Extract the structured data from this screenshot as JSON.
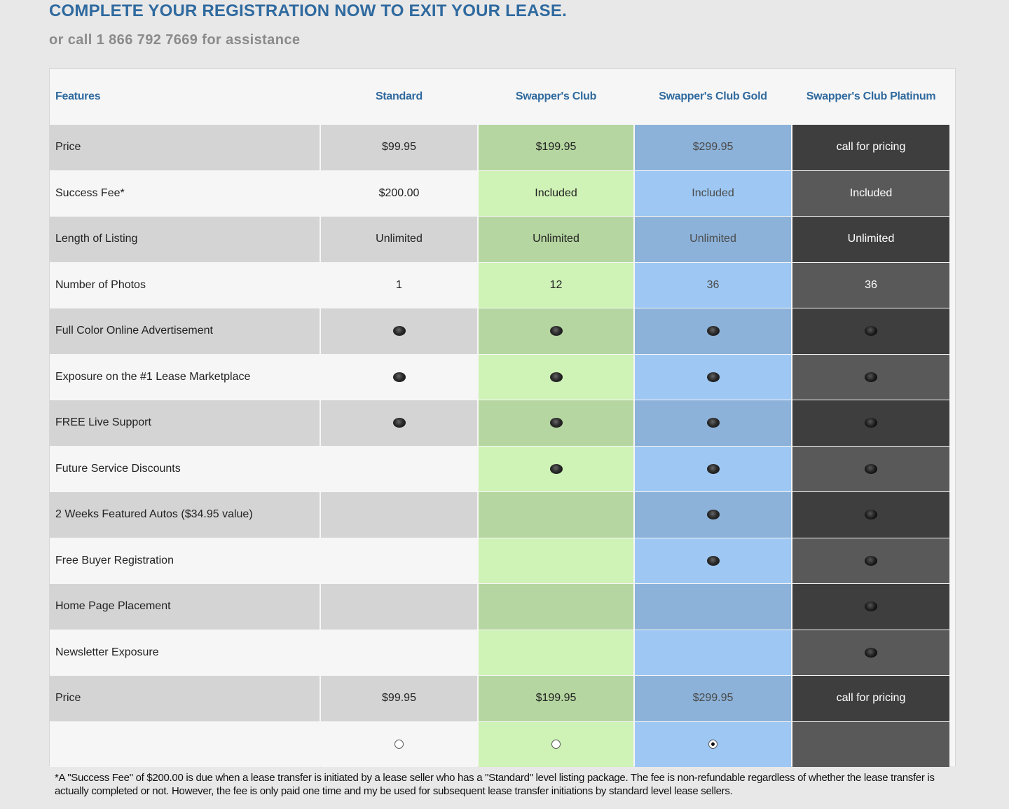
{
  "header": {
    "title": "COMPLETE YOUR REGISTRATION NOW TO EXIT YOUR LEASE.",
    "subtitle": "or call 1 866 792 7669 for assistance"
  },
  "table": {
    "columns": [
      "Features",
      "Standard",
      "Swapper's Club",
      "Swapper's Club Gold",
      "Swapper's Club Platinum"
    ],
    "rows": [
      {
        "feature": "Price",
        "values": [
          "$99.95",
          "$199.95",
          "$299.95",
          "call for pricing"
        ]
      },
      {
        "feature": "Success Fee*",
        "values": [
          "$200.00",
          "Included",
          "Included",
          "Included"
        ]
      },
      {
        "feature": "Length of Listing",
        "values": [
          "Unlimited",
          "Unlimited",
          "Unlimited",
          "Unlimited"
        ]
      },
      {
        "feature": "Number of Photos",
        "values": [
          "1",
          "12",
          "36",
          "36"
        ]
      },
      {
        "feature": "Full Color Online Advertisement",
        "dots": [
          true,
          true,
          true,
          true
        ]
      },
      {
        "feature": "Exposure on the #1 Lease Marketplace",
        "dots": [
          true,
          true,
          true,
          true
        ]
      },
      {
        "feature": "FREE Live Support",
        "dots": [
          true,
          true,
          true,
          true
        ]
      },
      {
        "feature": "Future Service Discounts",
        "dots": [
          false,
          true,
          true,
          true
        ]
      },
      {
        "feature": "2 Weeks Featured Autos ($34.95 value)",
        "dots": [
          false,
          false,
          true,
          true
        ]
      },
      {
        "feature": "Free Buyer Registration",
        "dots": [
          false,
          false,
          true,
          true
        ]
      },
      {
        "feature": "Home Page Placement",
        "dots": [
          false,
          false,
          false,
          true
        ]
      },
      {
        "feature": "Newsletter Exposure",
        "dots": [
          false,
          false,
          false,
          true
        ]
      },
      {
        "feature": "Price",
        "values": [
          "$99.95",
          "$199.95",
          "$299.95",
          "call for pricing"
        ]
      }
    ],
    "plan_selection": {
      "radios": [
        true,
        true,
        true,
        false
      ],
      "selected": "Swapper's Club Gold"
    }
  },
  "colors": {
    "header_text": "#2f6a9f",
    "standard": [
      "#d4d4d4",
      "#f7f6f6"
    ],
    "club": [
      "#b5d6a0",
      "#cff2b6"
    ],
    "gold": [
      "#8cb2d9",
      "#9ec8f3"
    ],
    "platinum": [
      "#3e3e3e",
      "#595959"
    ]
  },
  "footnote": "*A \"Success Fee\" of $200.00 is due when a lease transfer is initiated by a lease seller who has a \"Standard\" level listing package. The fee is non-refundable regardless of whether the lease transfer is actually completed or not. However, the fee is only paid one time and my be used for subsequent lease transfer initiations by standard level lease sellers."
}
